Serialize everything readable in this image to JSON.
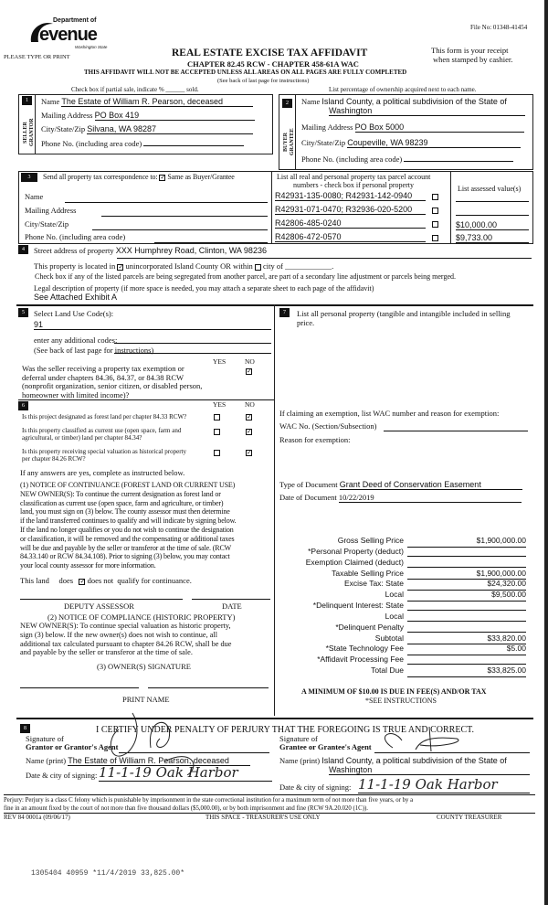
{
  "header": {
    "logo_line1": "Department of",
    "logo_line2": "evenue",
    "logo_line3": "Washington State",
    "file_no": "File No:  01348-41454",
    "please": "PLEASE TYPE OR PRINT",
    "title": "REAL ESTATE EXCISE TAX AFFIDAVIT",
    "chapter": "CHAPTER 82.45 RCW - CHAPTER 458-61A WAC",
    "receipt1": "This form is your receipt",
    "receipt2": "when stamped by cashier.",
    "warning": "THIS AFFIDAVIT WILL NOT BE ACCEPTED UNLESS ALL AREAS ON ALL PAGES ARE FULLY COMPLETED",
    "see_back": "(See back of last page for instructions)",
    "partial": "Check box if partial sale, indicate % ______ sold.",
    "ownership": "List percentage of ownership acquired next to each name."
  },
  "seller": {
    "num": "1",
    "side": "SELLER GRANTOR",
    "name_label": "Name",
    "name": "The Estate of William R. Pearson, deceased",
    "addr_label": "Mailing Address",
    "addr": "PO Box 419",
    "city_label": "City/State/Zip",
    "city": "Silvana, WA 98287",
    "phone_label": "Phone No. (including area code)"
  },
  "buyer": {
    "num": "2",
    "side": "BUYER GRANTEE",
    "name_label": "Name",
    "name1": "Island County, a political subdivision of the State of",
    "name2": "Washington",
    "addr_label": "Mailing Address",
    "addr": "PO Box 5000",
    "city_label": "City/State/Zip",
    "city": "Coupeville, WA 98239",
    "phone_label": "Phone No. (including area code)"
  },
  "correspondence": {
    "num": "3",
    "label": "Send all property tax correspondence to:",
    "same": "Same as Buyer/Grantee",
    "same_checked": true,
    "name": "Name",
    "addr": "Mailing Address",
    "city": "City/State/Zip",
    "phone": "Phone No. (including area code)"
  },
  "parcels": {
    "header1": "List all real and personal property tax parcel account",
    "header2": "numbers - check box if personal property",
    "assessed_header": "List assessed value(s)",
    "items": [
      {
        "parcel": "R42931-135-0080; R42931-142-0940",
        "value": ""
      },
      {
        "parcel": "R42931-071-0470; R32936-020-5200",
        "value": ""
      },
      {
        "parcel": "R42806-485-0240",
        "value": "$10,000.00"
      },
      {
        "parcel": "R42806-472-0570",
        "value": "$9,733.00"
      }
    ]
  },
  "property": {
    "num": "4",
    "street_label": "Street address of property",
    "street": "XXX Humphrey Road, Clinton, WA 98236",
    "located_pre": "This property is located in",
    "located_uninc": "unincorporated Island County OR within",
    "located_city": "city of ____________.",
    "segregated": "Check box if any of the listed parcels are being segregated from another parcel, are part of a secondary line adjustment or parcels being merged.",
    "legal_label": "Legal description of property (if more space is needed, you may attach a separate sheet to each page of the affidavit)",
    "legal": "See Attached Exhibit A"
  },
  "land_use": {
    "num": "5",
    "label": "Select Land Use Code(s):",
    "code": "91",
    "additional": "enter any additional codes:",
    "see_back": "(See back of last page for instructions)",
    "yes": "YES",
    "no": "NO",
    "exemption_q": [
      "Was the seller receiving a property tax exemption or",
      "deferral under chapters 84.36, 84.37, or 84.38 RCW",
      "(nonprofit organization, senior citizen, or disabled person,",
      "homeowner with limited income)?"
    ]
  },
  "section6": {
    "num": "6",
    "yes": "YES",
    "no": "NO",
    "questions": [
      {
        "l1": "Is this project designated as forest land per chapter 84.33 RCW?",
        "l2": ""
      },
      {
        "l1": "Is this property classified as current use (open space, farm and",
        "l2": "agricultural, or timber) land per chapter 84.34?"
      },
      {
        "l1": "Is this property receiving special valuation as historical property",
        "l2": "per chapter 84.26 RCW?"
      }
    ],
    "if_yes": "If any answers are yes, complete as instructed below.",
    "notice1": [
      "(1) NOTICE OF CONTINUANCE (FOREST LAND OR CURRENT USE)",
      "NEW OWNER(S):  To continue the current designation as forest land or",
      "classification as current use (open space, farm and agriculture, or timber)",
      "land, you must sign on (3) below.  The county assessor must then determine",
      "if the land transferred continues to qualify and will indicate by signing below.",
      "If the land no longer qualifies or you do not wish to continue the designation",
      "or classification, it will be removed and the compensating or additional taxes",
      "will be due and payable by the seller or transferor at the time of sale.  (RCW",
      "84.33.140 or RCW 84.34.108).  Prior to signing (3) below, you may contact",
      "your local county assessor for more information."
    ],
    "this_land": "This land",
    "does": "does",
    "does_not": "does not",
    "qualify": "qualify for continuance.",
    "deputy": "DEPUTY ASSESSOR",
    "date": "DATE",
    "notice2_title": "(2) NOTICE OF COMPLIANCE (HISTORIC PROPERTY)",
    "notice2": [
      "NEW OWNER(S):  To continue special valuation as historic property,",
      "sign (3) below.  If the new owner(s) does not wish to continue, all",
      "additional tax calculated pursuant to chapter 84.26 RCW, shall be due",
      "and payable by the seller or transferor at the time of sale."
    ],
    "owner_sig": "(3) OWNER(S) SIGNATURE",
    "print_name": "PRINT NAME"
  },
  "section7": {
    "num": "7",
    "label1": "List all personal property (tangible and intangible included in selling",
    "label2": "price.",
    "exempt_label": "If claiming an exemption, list WAC number and reason for exemption:",
    "wac": "WAC No. (Section/Subsection)",
    "reason": "Reason for exemption:",
    "doc_type_label": "Type of Document",
    "doc_type": "Grant Deed of Conservation Easement",
    "doc_date_label": "Date of Document",
    "doc_date": "10/22/2019"
  },
  "tax": {
    "rows": [
      {
        "label": "Gross Selling Price",
        "value": "$1,900,000.00"
      },
      {
        "label": "*Personal Property (deduct)",
        "value": ""
      },
      {
        "label": "Exemption Claimed (deduct)",
        "value": ""
      },
      {
        "label": "Taxable Selling Price",
        "value": "$1,900,000.00"
      },
      {
        "label": "Excise Tax:  State",
        "value": "$24,320.00"
      },
      {
        "label": "Local",
        "value": "$9,500.00"
      },
      {
        "label": "*Delinquent Interest:  State",
        "value": ""
      },
      {
        "label": "Local",
        "value": ""
      },
      {
        "label": "*Delinquent Penalty",
        "value": ""
      },
      {
        "label": "Subtotal",
        "value": "$33,820.00"
      },
      {
        "label": "*State Technology Fee",
        "value": "$5.00"
      },
      {
        "label": "*Affidavit Processing Fee",
        "value": ""
      },
      {
        "label": "Total Due",
        "value": "$33,825.00"
      }
    ],
    "minimum": "A MINIMUM OF $10.00 IS DUE IN FEE(S) AND/OR TAX",
    "see": "*SEE INSTRUCTIONS"
  },
  "section8": {
    "num": "8",
    "certify": "I CERTIFY UNDER PENALTY OF PERJURY THAT THE FOREGOING IS TRUE AND CORRECT.",
    "sig_of": "Signature of",
    "grantor_agent": "Grantor or Grantor's Agent",
    "grantee_agent": "Grantee or Grantee's Agent",
    "name_print": "Name (print)",
    "grantor_name": "The Estate of William R. Pearson, deceased",
    "grantee_name1": "Island County, a political subdivision of the State of",
    "grantee_name2": "Washington",
    "date_city": "Date & city of signing:",
    "grantor_date": "11-1-19  Oak Harbor",
    "grantee_date": "11-1-19  Oak Harbor"
  },
  "footer": {
    "perjury1": "Perjury:  Perjury is a class C felony which is punishable by imprisonment in the state correctional institution for a maximum term of not more than five years, or by a",
    "perjury2": "fine in an amount fixed by the court of not more than five thousand dollars ($5,000.00), or by both imprisonment and fine (RCW 9A.20.020 (1C)).",
    "rev": "REV 84 0001a (09/06/17)",
    "treasurer_use": "THIS SPACE - TREASURER'S USE ONLY",
    "county_treasurer": "COUNTY TREASURER",
    "stamp": "1305404 40959 *11/4/2019 33,825.00*"
  }
}
